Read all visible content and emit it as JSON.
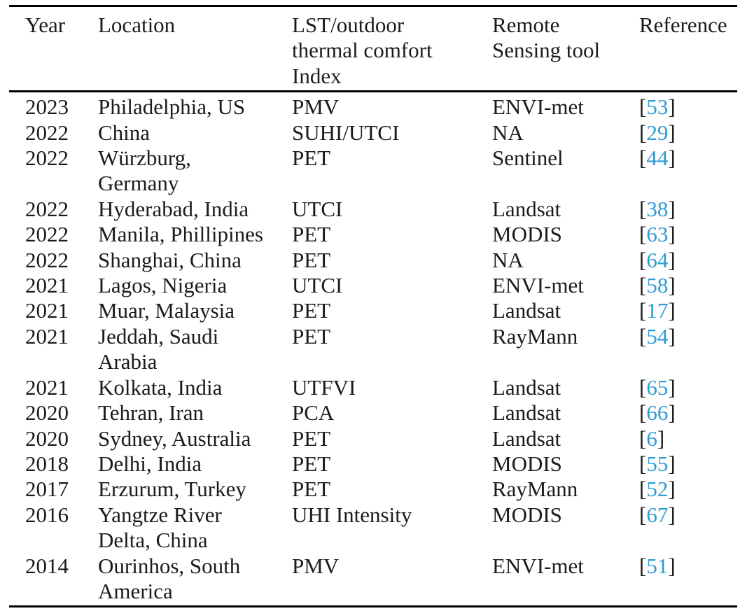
{
  "page": {
    "background": "#ffffff",
    "text_color": "#1b1b1b",
    "rule_color": "#000000",
    "citation_color": "#2d9bd4"
  },
  "table": {
    "columns": [
      "Year",
      "Location",
      "LST/outdoor\nthermal comfort\nIndex",
      "Remote\nSensing tool",
      "Reference"
    ],
    "ref_open": "[",
    "ref_close": "]",
    "rows": [
      {
        "year": "2023",
        "location": "Philadelphia, US",
        "index": "PMV",
        "tool": "ENVI-met",
        "ref": "53"
      },
      {
        "year": "2022",
        "location": "China",
        "index": "SUHI/UTCI",
        "tool": "NA",
        "ref": "29"
      },
      {
        "year": "2022",
        "location": "Würzburg,\nGermany",
        "index": "PET",
        "tool": "Sentinel",
        "ref": "44"
      },
      {
        "year": "2022",
        "location": "Hyderabad, India",
        "index": "UTCI",
        "tool": "Landsat",
        "ref": "38"
      },
      {
        "year": "2022",
        "location": "Manila, Phillipines",
        "index": "PET",
        "tool": "MODIS",
        "ref": "63"
      },
      {
        "year": "2022",
        "location": "Shanghai, China",
        "index": "PET",
        "tool": "NA",
        "ref": "64"
      },
      {
        "year": "2021",
        "location": "Lagos, Nigeria",
        "index": "UTCI",
        "tool": "ENVI-met",
        "ref": "58"
      },
      {
        "year": "2021",
        "location": "Muar, Malaysia",
        "index": "PET",
        "tool": "Landsat",
        "ref": "17"
      },
      {
        "year": "2021",
        "location": "Jeddah, Saudi\nArabia",
        "index": "PET",
        "tool": "RayMann",
        "ref": "54"
      },
      {
        "year": "2021",
        "location": "Kolkata, India",
        "index": "UTFVI",
        "tool": "Landsat",
        "ref": "65"
      },
      {
        "year": "2020",
        "location": "Tehran, Iran",
        "index": "PCA",
        "tool": "Landsat",
        "ref": "66"
      },
      {
        "year": "2020",
        "location": "Sydney, Australia",
        "index": "PET",
        "tool": "Landsat",
        "ref": "6"
      },
      {
        "year": "2018",
        "location": "Delhi, India",
        "index": "PET",
        "tool": "MODIS",
        "ref": "55"
      },
      {
        "year": "2017",
        "location": "Erzurum, Turkey",
        "index": "PET",
        "tool": "RayMann",
        "ref": "52"
      },
      {
        "year": "2016",
        "location": "Yangtze River\nDelta, China",
        "index": "UHI Intensity",
        "tool": "MODIS",
        "ref": "67"
      },
      {
        "year": "2014",
        "location": "Ourinhos, South\nAmerica",
        "index": "PMV",
        "tool": "ENVI-met",
        "ref": "51"
      }
    ]
  }
}
